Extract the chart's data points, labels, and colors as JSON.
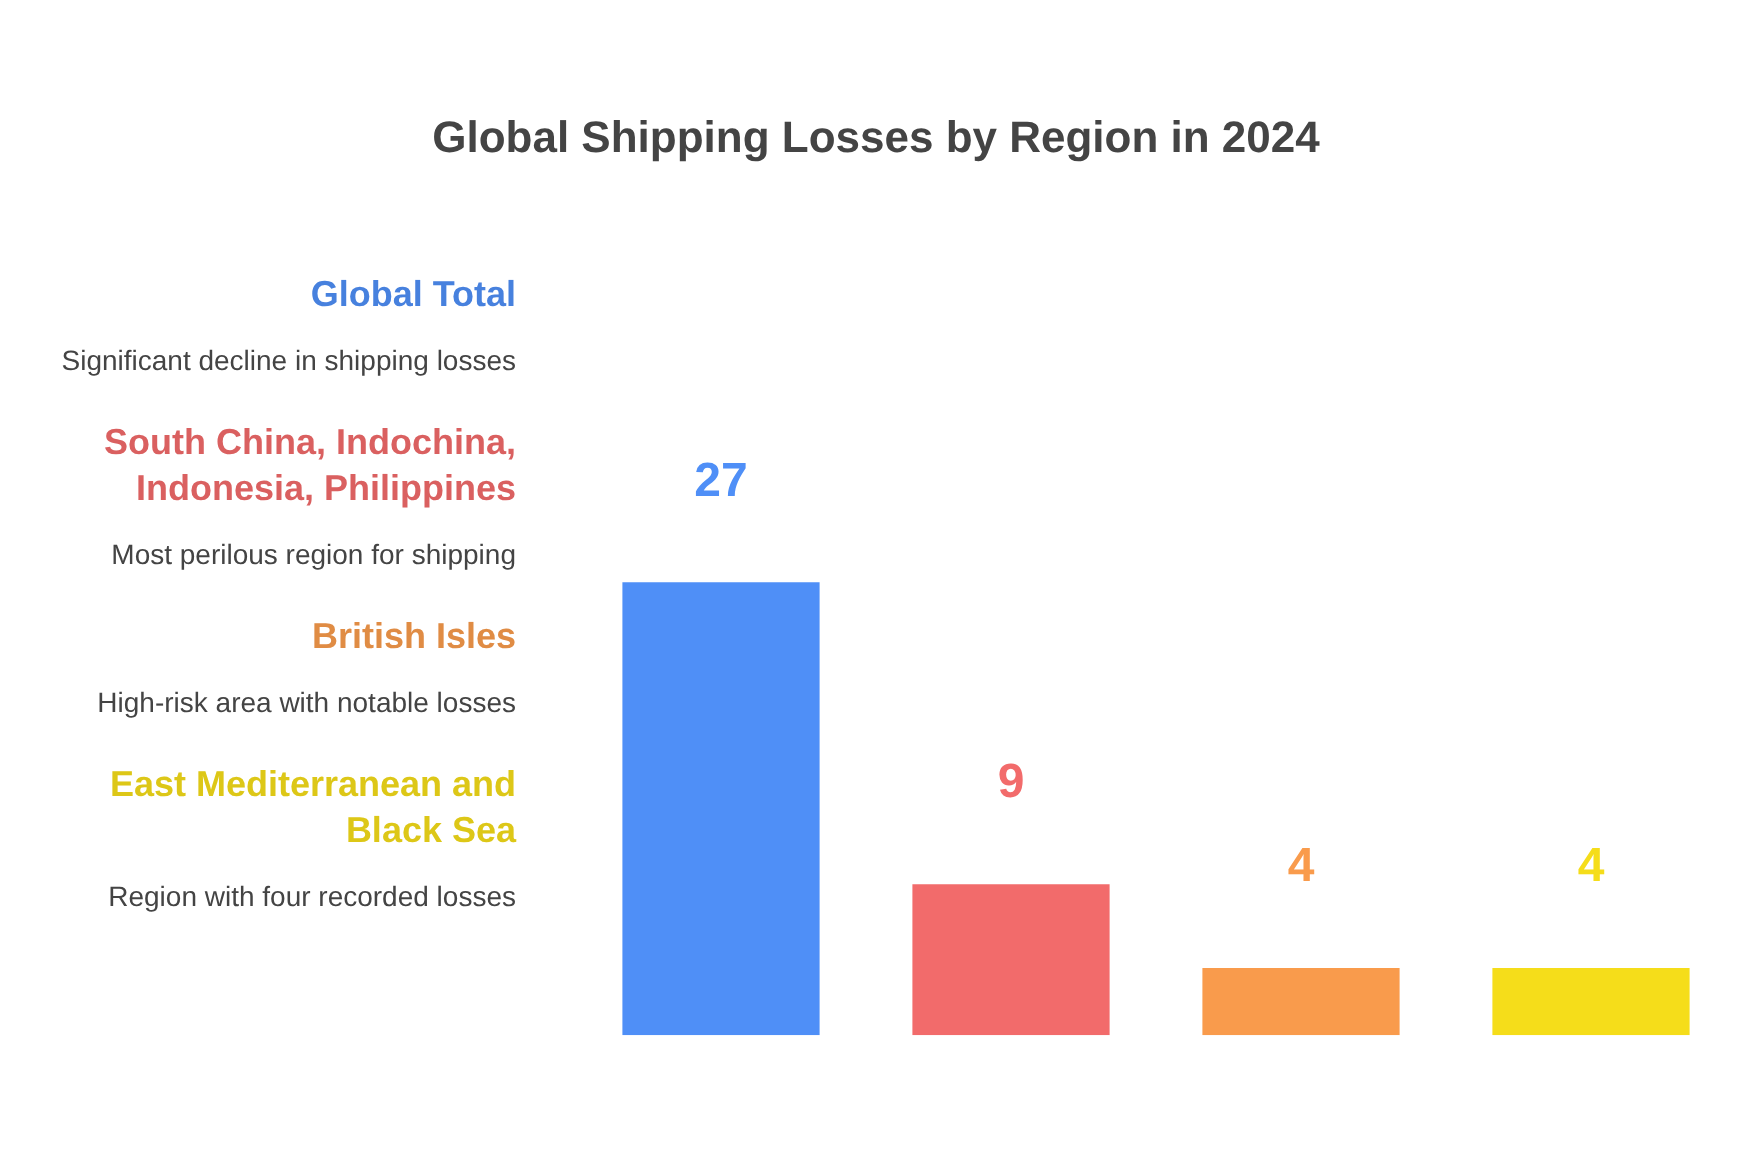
{
  "chart_data": {
    "type": "bar",
    "title": "Global Shipping Losses by Region in 2024",
    "categories": [
      null,
      null,
      null,
      null
    ],
    "values": [
      27,
      9,
      4,
      4
    ],
    "colors": [
      "#4f8ff7",
      "#f26b6b",
      "#f99b4c",
      "#f5dd1a"
    ],
    "annotations": [
      "Global Total",
      "Significant decline in shipping losses",
      "South China, Indochina, Indonesia, Philippines",
      "Most perilous region for shipping",
      "British Isles",
      "High-risk area with notable losses",
      "East Mediterranean and Black Sea",
      "Region with four recorded losses"
    ],
    "data_labels": true,
    "grid": false
  }
}
